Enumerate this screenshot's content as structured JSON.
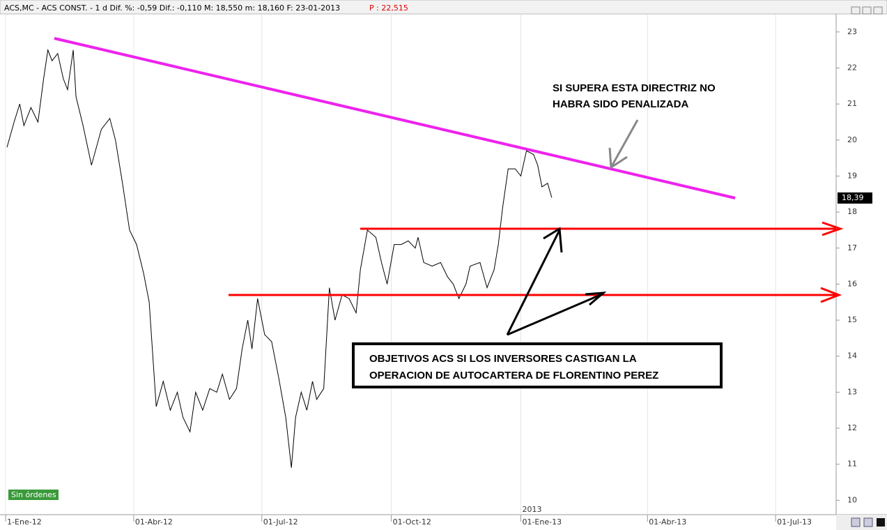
{
  "header": {
    "info": "ACS,MC - ACS CONST. -  1 d Dif. %: -0,59 Dif.: -0,110 M: 18,550 m: 18,160 F: 23-01-2013",
    "price": "P : 22,515"
  },
  "chart_data": {
    "type": "line",
    "x": [
      1,
      6,
      10,
      13,
      18,
      23,
      27,
      30,
      33,
      37,
      41,
      44,
      48,
      50,
      55,
      61,
      68,
      74,
      78,
      83,
      88,
      93,
      98,
      102,
      107,
      112,
      117,
      122,
      126,
      131,
      135,
      140,
      145,
      150,
      154,
      159,
      164,
      168,
      172,
      175,
      179,
      184,
      189,
      194,
      199,
      203,
      206,
      210,
      214,
      218,
      221,
      226,
      230,
      234,
      239,
      244,
      249,
      252,
      257,
      263,
      267,
      271,
      276,
      281,
      286,
      291,
      293,
      297,
      303,
      309,
      314,
      318,
      322,
      327,
      330,
      337,
      342,
      347,
      350,
      353,
      357,
      362,
      366,
      370,
      375,
      378,
      381,
      385,
      388
    ],
    "series": [
      {
        "name": "ACS",
        "color": "#000000",
        "values": [
          19.8,
          20.5,
          21.0,
          20.4,
          20.9,
          20.5,
          21.7,
          22.5,
          22.2,
          22.4,
          21.7,
          21.4,
          22.5,
          21.2,
          20.4,
          19.3,
          20.3,
          20.6,
          20.0,
          18.8,
          17.5,
          17.1,
          16.3,
          15.5,
          12.6,
          13.3,
          12.5,
          13.0,
          12.3,
          11.9,
          13.0,
          12.5,
          13.1,
          13.0,
          13.5,
          12.8,
          13.1,
          14.2,
          15.0,
          14.2,
          15.6,
          14.6,
          14.4,
          13.4,
          12.3,
          10.9,
          12.3,
          13.0,
          12.5,
          13.3,
          12.8,
          13.1,
          15.9,
          15.0,
          15.7,
          15.6,
          15.2,
          16.4,
          17.5,
          17.3,
          16.6,
          16.0,
          17.1,
          17.1,
          17.2,
          17.0,
          17.3,
          16.6,
          16.5,
          16.6,
          16.2,
          16.0,
          15.6,
          16.0,
          16.5,
          16.6,
          15.9,
          16.4,
          17.1,
          18.1,
          19.2,
          19.2,
          19.0,
          19.7,
          19.6,
          19.3,
          18.7,
          18.8,
          18.4
        ]
      }
    ],
    "xlim": [
      -4,
      590
    ],
    "xticks": [
      {
        "value": 0,
        "label": "1-Ene-12"
      },
      {
        "value": 91,
        "label": "01-Abr-12"
      },
      {
        "value": 182,
        "label": "01-Jul-12"
      },
      {
        "value": 274,
        "label": "01-Oct-12"
      },
      {
        "value": 366,
        "label": "01-Ene-13"
      },
      {
        "value": 456,
        "label": "01-Abr-13"
      },
      {
        "value": 547,
        "label": "01-Jul-13"
      }
    ],
    "ylim": [
      9.6,
      23.5
    ],
    "yticks": [
      10,
      11,
      12,
      13,
      14,
      15,
      16,
      17,
      18,
      19,
      20,
      21,
      22,
      23
    ],
    "last_price": {
      "value": 18.39,
      "label": "18,39"
    },
    "year_label": "2013",
    "annotations": [
      "SI SUPERA ESTA  DIRECTRIZ NO",
      "HABRA SIDO PENALIZADA",
      "OBJETIVOS ACS SI LOS INVERSORES CASTIGAN LA",
      "OPERACION DE AUTOCARTERA DE FLORENTINO PEREZ"
    ]
  },
  "button": "Sin órdenes"
}
